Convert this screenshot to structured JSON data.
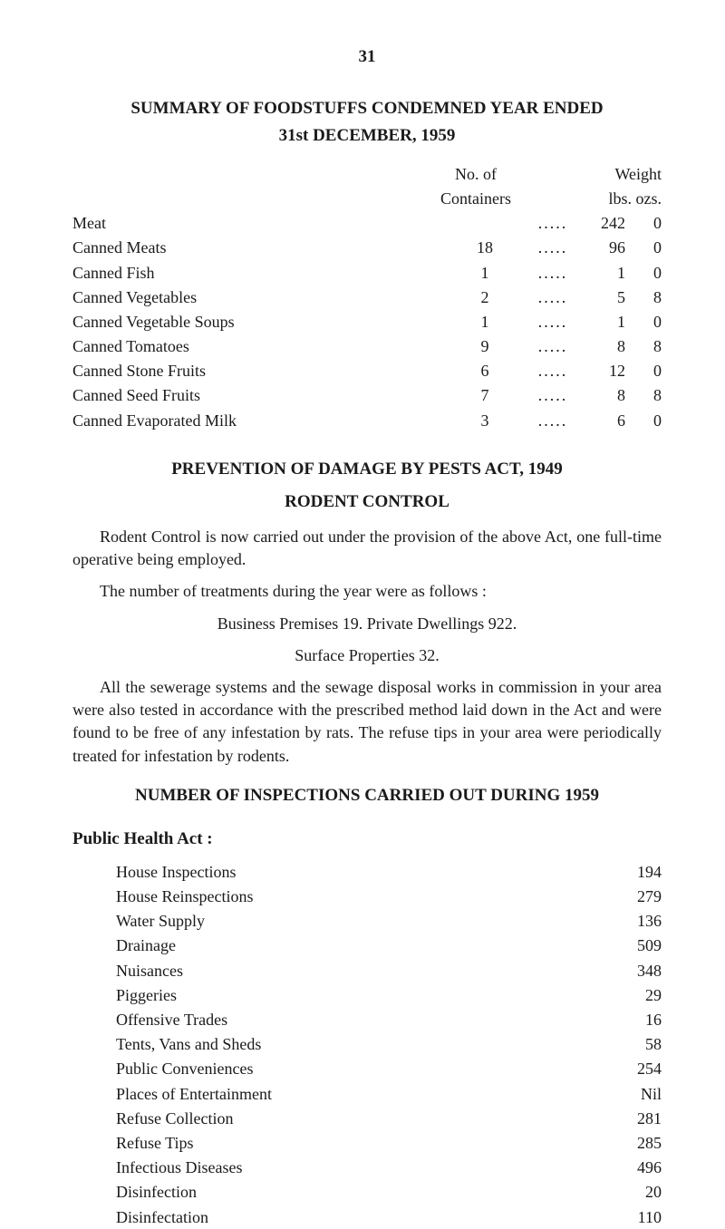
{
  "page_number": "31",
  "section1": {
    "title_line1": "SUMMARY OF FOODSTUFFS CONDEMNED YEAR ENDED",
    "title_line2": "31st DECEMBER, 1959",
    "header_col2_line1": "No. of",
    "header_col2_line2": "Containers",
    "header_col3_line1": "Weight",
    "header_col3_line2": "lbs.  ozs.",
    "rows": [
      {
        "label": "Meat",
        "containers": "",
        "lbs": "242",
        "ozs": "0"
      },
      {
        "label": "Canned Meats",
        "containers": "18",
        "lbs": "96",
        "ozs": "0"
      },
      {
        "label": "Canned Fish",
        "containers": "1",
        "lbs": "1",
        "ozs": "0"
      },
      {
        "label": "Canned Vegetables",
        "containers": "2",
        "lbs": "5",
        "ozs": "8"
      },
      {
        "label": "Canned Vegetable Soups",
        "containers": "1",
        "lbs": "1",
        "ozs": "0"
      },
      {
        "label": "Canned Tomatoes",
        "containers": "9",
        "lbs": "8",
        "ozs": "8"
      },
      {
        "label": "Canned Stone Fruits",
        "containers": "6",
        "lbs": "12",
        "ozs": "0"
      },
      {
        "label": "Canned Seed Fruits",
        "containers": "7",
        "lbs": "8",
        "ozs": "8"
      },
      {
        "label": "Canned Evaporated Milk",
        "containers": "3",
        "lbs": "6",
        "ozs": "0"
      }
    ]
  },
  "section2": {
    "title": "PREVENTION OF DAMAGE BY PESTS ACT, 1949",
    "subtitle": "RODENT CONTROL",
    "para1": "Rodent Control is now carried out under the provision of the above Act, one full-time operative being employed.",
    "para2": "The number of treatments during the year were as follows :",
    "para3": "Business Premises 19.    Private Dwellings 922.",
    "para4": "Surface Properties 32.",
    "para5": "All the sewerage systems and the sewage disposal works in commission in your area were also tested in accordance with the prescribed method laid down in the Act and were found to be free of any infestation by rats. The refuse tips in your area were periodically treated for infestation by rodents."
  },
  "section3": {
    "title": "NUMBER OF INSPECTIONS CARRIED OUT DURING 1959",
    "subheading": "Public Health Act :",
    "rows": [
      {
        "label": "House Inspections",
        "value": "194"
      },
      {
        "label": "House Reinspections",
        "value": "279"
      },
      {
        "label": "Water Supply",
        "value": "136"
      },
      {
        "label": "Drainage",
        "value": "509"
      },
      {
        "label": "Nuisances",
        "value": "348"
      },
      {
        "label": "Piggeries",
        "value": "29"
      },
      {
        "label": "Offensive Trades",
        "value": "16"
      },
      {
        "label": "Tents, Vans and Sheds",
        "value": "58"
      },
      {
        "label": "Public Conveniences",
        "value": "254"
      },
      {
        "label": "Places of Entertainment",
        "value": "Nil"
      },
      {
        "label": "Refuse Collection",
        "value": "281"
      },
      {
        "label": "Refuse Tips",
        "value": "285"
      },
      {
        "label": "Infectious Diseases",
        "value": "496"
      },
      {
        "label": "Disinfection",
        "value": "20"
      },
      {
        "label": "Disinfectation",
        "value": "110"
      }
    ]
  }
}
